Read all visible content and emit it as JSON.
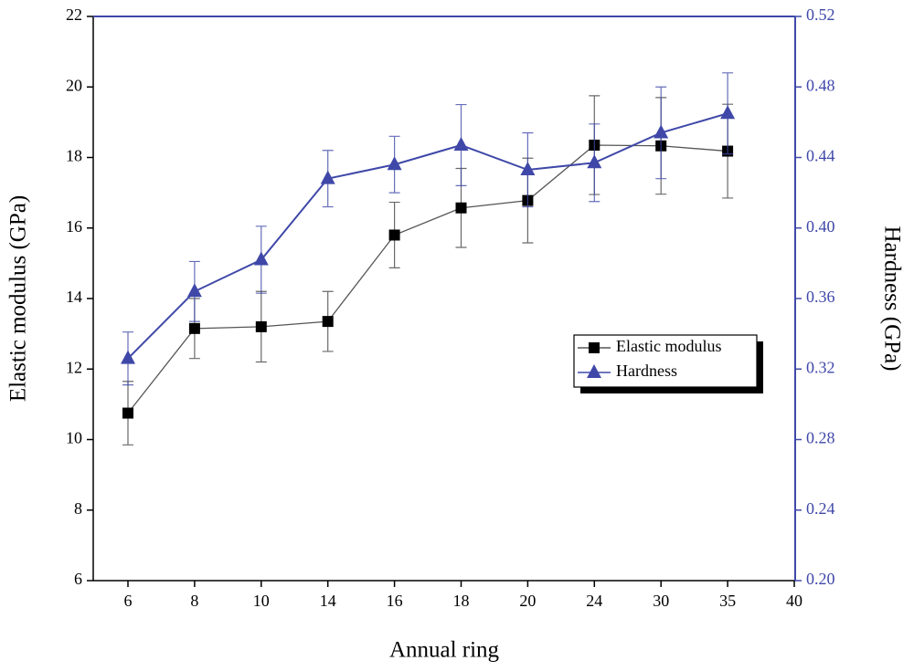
{
  "chart_data": {
    "type": "line",
    "x_label": "Annual ring",
    "y_label": "Elastic modulus (GPa)",
    "y2_label": "Hardness (GPa)",
    "categories": [
      "6",
      "8",
      "10",
      "14",
      "16",
      "18",
      "20",
      "24",
      "30",
      "35",
      "40"
    ],
    "series": [
      {
        "name": "Elastic modulus",
        "color": "#000000",
        "line_color": "#555555",
        "marker": "square",
        "values": [
          10.75,
          13.15,
          13.2,
          13.35,
          15.8,
          16.57,
          16.78,
          18.35,
          18.33,
          18.18,
          null
        ],
        "errors": [
          0.9,
          0.85,
          1.0,
          0.85,
          0.93,
          1.12,
          1.2,
          1.4,
          1.37,
          1.33,
          null
        ]
      },
      {
        "name": "Hardness",
        "color": "#3f48a8",
        "line_color": "#3f48a8",
        "marker": "triangle",
        "axis": "y2",
        "values": [
          0.326,
          0.364,
          0.382,
          0.428,
          0.436,
          0.447,
          0.433,
          0.437,
          0.454,
          0.465,
          null
        ],
        "errors": [
          0.015,
          0.017,
          0.019,
          0.016,
          0.016,
          0.023,
          0.021,
          0.022,
          0.026,
          0.023,
          null
        ]
      }
    ],
    "ylim": [
      6,
      22
    ],
    "yticks": [
      6,
      8,
      10,
      12,
      14,
      16,
      18,
      20,
      22
    ],
    "y2lim": [
      0.2,
      0.52
    ],
    "y2ticks": [
      {
        "value": 0.2,
        "label": "0.20"
      },
      {
        "value": 0.24,
        "label": "0.24"
      },
      {
        "value": 0.28,
        "label": "0.28"
      },
      {
        "value": 0.32,
        "label": "0.32"
      },
      {
        "value": 0.36,
        "label": "0.36"
      },
      {
        "value": 0.4,
        "label": "0.40"
      },
      {
        "value": 0.44,
        "label": "0.44"
      },
      {
        "value": 0.48,
        "label": "0.48"
      },
      {
        "value": 0.52,
        "label": "0.52"
      }
    ],
    "y2_color": "#3f48a8",
    "legend": "right"
  }
}
